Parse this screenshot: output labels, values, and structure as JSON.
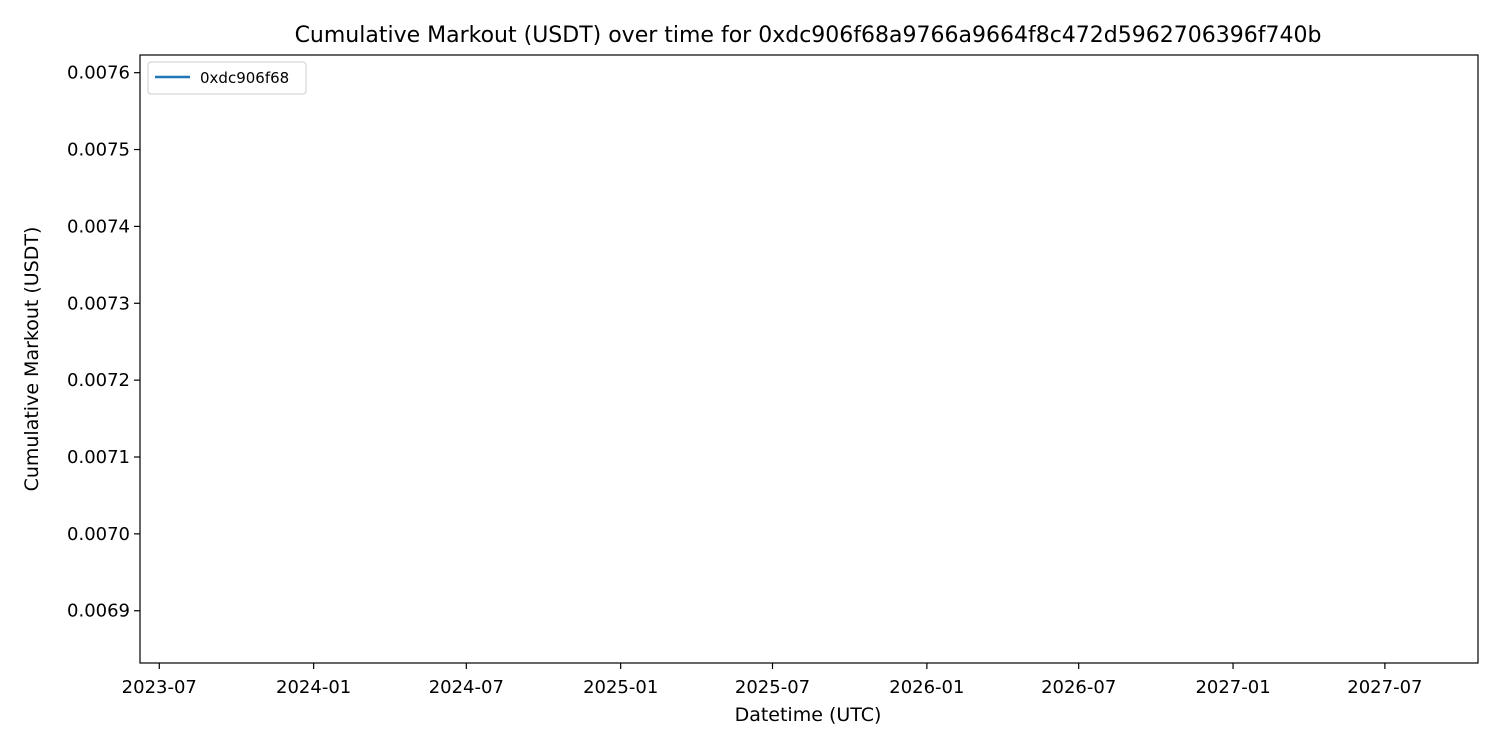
{
  "chart_data": {
    "type": "line",
    "title": "Cumulative Markout (USDT) over time for 0xdc906f68a9766a9664f8c472d5962706396f740b",
    "xlabel": "Datetime (UTC)",
    "ylabel": "Cumulative Markout (USDT)",
    "x_ticks": [
      "2023-07",
      "2024-01",
      "2024-07",
      "2025-01",
      "2025-07",
      "2026-01",
      "2026-07",
      "2027-01",
      "2027-07"
    ],
    "y_ticks": [
      "0.0069",
      "0.0070",
      "0.0071",
      "0.0072",
      "0.0073",
      "0.0074",
      "0.0075",
      "0.0076"
    ],
    "xlim": [
      "2023-06-08",
      "2027-10-20"
    ],
    "ylim": [
      0.006832,
      0.007623
    ],
    "grid": false,
    "legend_position": "top-left",
    "series": [
      {
        "name": "0xdc906f68",
        "color": "#1f77b4",
        "x": [],
        "y": []
      }
    ]
  }
}
